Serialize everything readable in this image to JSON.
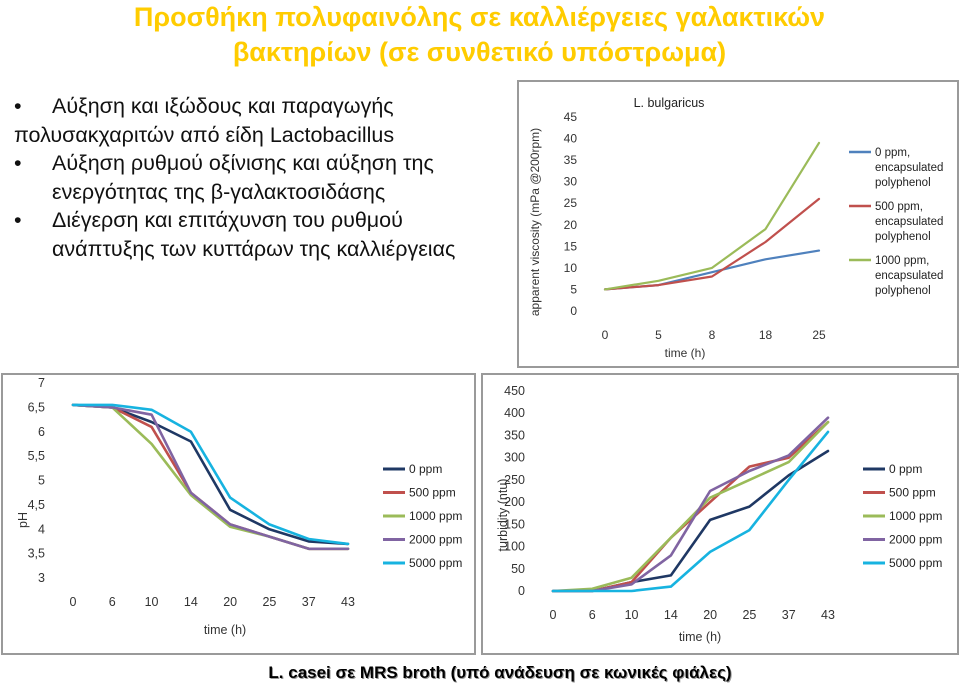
{
  "slide": {
    "title_line1": "Προσθήκη πολυφαινόλης σε καλλιέργειες γαλακτικών",
    "title_line2": "βακτηρίων   (σε συνθετικό υπόστρωμα)",
    "title_color": "#ffcc00",
    "bullets": [
      [
        "Αύξηση και ιξώδους και παραγωγής",
        "πολυσακχαριτών  από  είδη Lactobacillus"
      ],
      [
        "Αύξηση ρυθμού οξίνισης και αύξηση της",
        "ενεργότητας της β-γαλακτοσιδάσης"
      ],
      [
        "Διέγερση και επιτάχυνση του ρυθμού",
        "ανάπτυξης των κυττάρων της καλλιέργειας"
      ]
    ],
    "caption": "L. casei σε MRS broth (υπό ανάδευση σε κωνικές φιάλες)"
  },
  "chart_data": [
    {
      "type": "line",
      "title": "L. bulgaricus",
      "xlabel": "time (h)",
      "ylabel": "apparent viscosity (mPa @200rpm)",
      "categories": [
        "0",
        "5",
        "8",
        "18",
        "25"
      ],
      "yticks": [
        "0",
        "5",
        "10",
        "15",
        "20",
        "25",
        "30",
        "35",
        "40",
        "45"
      ],
      "ylim": [
        0,
        45
      ],
      "grid": false,
      "legend_position": "right",
      "series": [
        {
          "name": "0 ppm, encapsulated polyphenol",
          "color": "#4f81bd",
          "values": [
            5,
            6,
            9,
            12,
            14
          ]
        },
        {
          "name": "500 ppm, encapsulated polyphenol",
          "color": "#c0504d",
          "values": [
            5,
            6,
            8,
            16,
            26
          ]
        },
        {
          "name": "1000 ppm, encapsulated polyphenol",
          "color": "#9bbb59",
          "values": [
            5,
            7,
            10,
            19,
            39
          ]
        }
      ]
    },
    {
      "type": "line",
      "xlabel": "time (h)",
      "ylabel": "pH",
      "categories": [
        "0",
        "6",
        "10",
        "14",
        "20",
        "25",
        "37",
        "43"
      ],
      "yticks": [
        "3",
        "3,5",
        "4",
        "4,5",
        "5",
        "5,5",
        "6",
        "6,5",
        "7"
      ],
      "ylim": [
        3,
        7
      ],
      "grid": false,
      "legend_position": "right",
      "series": [
        {
          "name": "0 ppm",
          "color": "#1f3864",
          "values": [
            6.55,
            6.5,
            6.2,
            5.8,
            4.4,
            4.0,
            3.75,
            3.7
          ]
        },
        {
          "name": "500 ppm",
          "color": "#c0504d",
          "values": [
            6.55,
            6.5,
            6.1,
            4.75,
            4.1,
            3.85,
            3.6,
            3.6
          ]
        },
        {
          "name": "1000 ppm",
          "color": "#9bbb59",
          "values": [
            6.55,
            6.5,
            5.75,
            4.7,
            4.05,
            3.85,
            3.6,
            3.6
          ]
        },
        {
          "name": "2000 ppm",
          "color": "#8064a2",
          "values": [
            6.55,
            6.5,
            6.35,
            4.75,
            4.1,
            3.85,
            3.6,
            3.6
          ]
        },
        {
          "name": "5000 ppm",
          "color": "#17b3e0",
          "values": [
            6.55,
            6.55,
            6.45,
            6.0,
            4.65,
            4.1,
            3.8,
            3.7
          ]
        }
      ]
    },
    {
      "type": "line",
      "xlabel": "time (h)",
      "ylabel": "turbidity (ntu)",
      "categories": [
        "0",
        "6",
        "10",
        "14",
        "20",
        "25",
        "37",
        "43"
      ],
      "yticks": [
        "0",
        "50",
        "100",
        "150",
        "200",
        "250",
        "300",
        "350",
        "400",
        "450"
      ],
      "ylim": [
        0,
        450
      ],
      "grid": false,
      "legend_position": "right",
      "series": [
        {
          "name": "0 ppm",
          "color": "#1f3864",
          "values": [
            0,
            0,
            20,
            35,
            160,
            190,
            260,
            315
          ]
        },
        {
          "name": "500 ppm",
          "color": "#c0504d",
          "values": [
            0,
            0,
            20,
            120,
            200,
            280,
            300,
            380
          ]
        },
        {
          "name": "1000 ppm",
          "color": "#9bbb59",
          "values": [
            0,
            5,
            30,
            120,
            210,
            250,
            290,
            380
          ]
        },
        {
          "name": "2000 ppm",
          "color": "#8064a2",
          "values": [
            0,
            0,
            15,
            80,
            225,
            270,
            305,
            390
          ]
        },
        {
          "name": "5000 ppm",
          "color": "#17b3e0",
          "values": [
            0,
            0,
            0,
            10,
            88,
            137,
            250,
            358
          ]
        }
      ]
    }
  ]
}
